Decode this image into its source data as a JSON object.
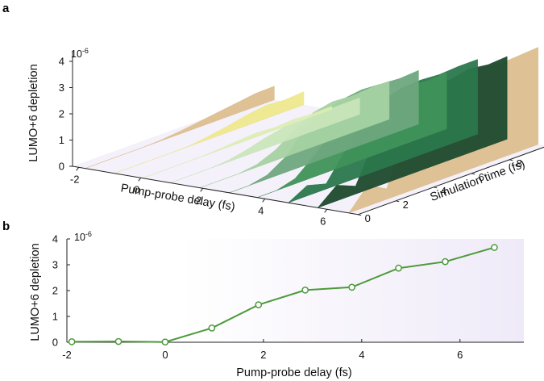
{
  "colors": {
    "accent": "#4c9a3a",
    "marker_fill": "#ffffff",
    "axis": "#222222",
    "panel_bg_gradient_end": "#efeaf8",
    "ridge_colors": [
      "#dcbf8f",
      "#eee88e",
      "#dcedb2",
      "#c9e5bb",
      "#a5d2a2",
      "#6ea77e",
      "#3f9258",
      "#2b774c",
      "#1c4a2e"
    ]
  },
  "chart_data": [
    {
      "panel": "a",
      "type": "area",
      "projection": "3d-waterfall",
      "exponent_label": "10-6",
      "ylabel": "LUMO+6 depletion",
      "xlabel": "Pump-probe delay (fs)",
      "zlabel": "Simulation time (fs)",
      "yticks": [
        "0",
        "1",
        "2",
        "3",
        "4"
      ],
      "xticks": [
        "-2",
        "0",
        "2",
        "4",
        "6"
      ],
      "zticks": [
        "0",
        "2",
        "4",
        "6",
        "8",
        "10"
      ],
      "ylim": [
        0,
        4.4
      ],
      "zlim": [
        0,
        10
      ],
      "x_range": [
        -2.2,
        7
      ],
      "pump_probe_delays": [
        -1.8,
        -0.85,
        0.05,
        0.95,
        1.9,
        2.85,
        3.75,
        4.75,
        5.7,
        6.7
      ],
      "series_sim_time": [
        0,
        1,
        2,
        3,
        4,
        5,
        6,
        7,
        8,
        9,
        10
      ],
      "series": [
        {
          "values": [
            0,
            0,
            0,
            0,
            0.03,
            0.1,
            0.2,
            0.3,
            0.4,
            0.5,
            0.52
          ]
        },
        {
          "values": [
            0,
            0,
            0,
            0,
            0.02,
            0.12,
            0.25,
            0.4,
            0.5,
            0.45,
            0.5
          ]
        },
        {
          "values": [
            0,
            0,
            0,
            0,
            0.04,
            0.1,
            0.15,
            0.1,
            0.15,
            0.1,
            0.12
          ]
        },
        {
          "values": [
            0,
            0,
            0,
            0.05,
            0.2,
            0.4,
            0.55,
            0.55,
            0.6,
            0.62,
            0.62
          ]
        },
        {
          "values": [
            0,
            0,
            0,
            0.1,
            0.4,
            0.9,
            1.3,
            1.45,
            1.4,
            1.45,
            1.45
          ]
        },
        {
          "values": [
            0,
            0,
            0.15,
            0.6,
            1.4,
            1.8,
            2.0,
            2.1,
            2.05,
            2.0,
            2.05
          ]
        },
        {
          "values": [
            0,
            0,
            0.2,
            0.8,
            1.5,
            1.95,
            2.1,
            2.05,
            2.15,
            2.1,
            2.15
          ]
        },
        {
          "values": [
            0,
            0.4,
            0.2,
            1.2,
            2.1,
            2.6,
            2.8,
            2.85,
            2.8,
            2.85,
            2.85
          ]
        },
        {
          "values": [
            0,
            0.6,
            0.3,
            1.8,
            2.6,
            3.0,
            3.1,
            3.05,
            3.2,
            3.1,
            3.15
          ]
        },
        {
          "values": [
            0,
            0.8,
            0.4,
            2.2,
            3.1,
            3.6,
            3.65,
            3.7,
            3.6,
            3.65,
            3.7
          ]
        }
      ]
    },
    {
      "panel": "b",
      "type": "line",
      "exponent_label": "10-6",
      "ylabel": "LUMO+6 depletion",
      "xlabel": "Pump-probe delay (fs)",
      "xticks": [
        "-2",
        "0",
        "2",
        "4",
        "6"
      ],
      "yticks": [
        "0",
        "1",
        "2",
        "3",
        "4"
      ],
      "xlim": [
        -2,
        7.3
      ],
      "ylim": [
        0,
        4
      ],
      "x": [
        -1.9,
        -0.95,
        0.0,
        0.95,
        1.9,
        2.85,
        3.8,
        4.75,
        5.7,
        6.7
      ],
      "y": [
        0.02,
        0.03,
        0.01,
        0.55,
        1.45,
        2.02,
        2.13,
        2.87,
        3.12,
        3.67
      ]
    }
  ]
}
